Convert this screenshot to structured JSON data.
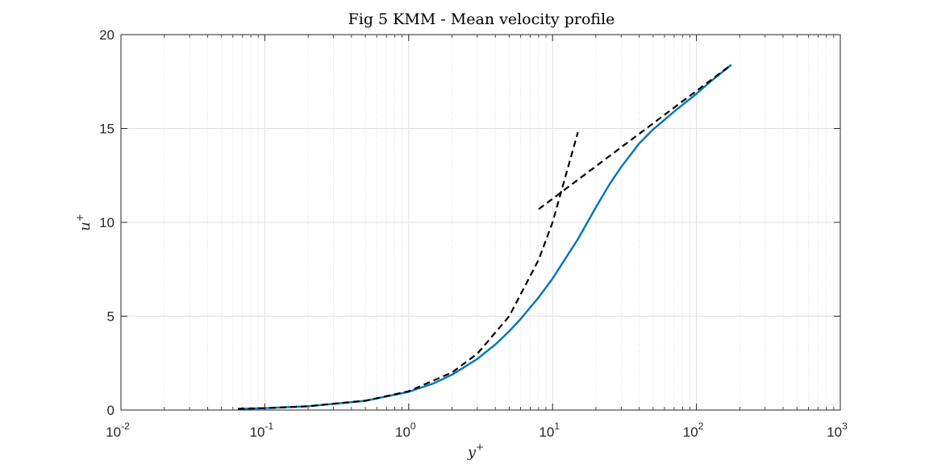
{
  "chart_data": {
    "type": "line",
    "title": "Fig 5 KMM - Mean velocity profile",
    "xlabel": "y",
    "xlabel_sup": "+",
    "ylabel": "u",
    "ylabel_sup": "+",
    "xscale": "log",
    "xlim": [
      0.01,
      1000
    ],
    "ylim": [
      0,
      20
    ],
    "yticks": [
      0,
      5,
      10,
      15,
      20
    ],
    "yticklabels": [
      "0",
      "5",
      "10",
      "15",
      "20"
    ],
    "xticks": [
      0.01,
      0.1,
      1,
      10,
      100,
      1000
    ],
    "xticklabels": [
      {
        "base": "10",
        "exp": "-2"
      },
      {
        "base": "10",
        "exp": "-1"
      },
      {
        "base": "10",
        "exp": "0"
      },
      {
        "base": "10",
        "exp": "1"
      },
      {
        "base": "10",
        "exp": "2"
      },
      {
        "base": "10",
        "exp": "3"
      }
    ],
    "grid": true,
    "minor_grid": true,
    "series": [
      {
        "style": "solid",
        "color": "#0072BD",
        "x": [
          0.065,
          0.1,
          0.2,
          0.5,
          1.0,
          1.5,
          2.0,
          3.0,
          4.0,
          5.0,
          6.0,
          8.0,
          10.0,
          12.0,
          15.0,
          20.0,
          25.0,
          30.0,
          40.0,
          50.0,
          70.0,
          100.0,
          130.0,
          175.0
        ],
        "y": [
          0.06,
          0.1,
          0.2,
          0.49,
          0.97,
          1.43,
          1.88,
          2.72,
          3.49,
          4.2,
          4.85,
          6.0,
          7.0,
          7.95,
          9.1,
          10.8,
          12.05,
          12.95,
          14.2,
          14.95,
          15.9,
          16.85,
          17.6,
          18.4
        ]
      },
      {
        "style": "dashed",
        "color": "#000000",
        "x": [
          0.065,
          0.1,
          0.2,
          0.5,
          1.0,
          2.0,
          3.0,
          5.0,
          8.0,
          10.0,
          15.0
        ],
        "y": [
          0.065,
          0.1,
          0.2,
          0.5,
          1.0,
          2.0,
          3.0,
          5.0,
          8.0,
          10.0,
          14.8
        ]
      },
      {
        "style": "dashed",
        "color": "#000000",
        "x": [
          8.0,
          175.0
        ],
        "y": [
          10.7,
          18.4
        ]
      }
    ]
  }
}
